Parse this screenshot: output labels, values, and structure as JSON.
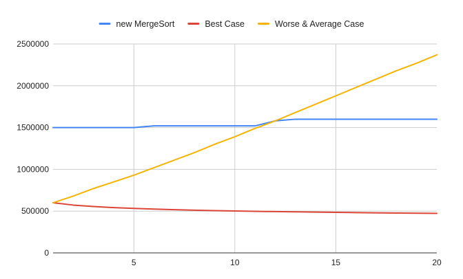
{
  "chart_data": {
    "type": "line",
    "title": "",
    "xlabel": "",
    "ylabel": "",
    "xlim": [
      1,
      20
    ],
    "ylim": [
      0,
      2500000
    ],
    "x_ticks": [
      5,
      10,
      15,
      20
    ],
    "y_ticks": [
      0,
      500000,
      1000000,
      1500000,
      2000000,
      2500000
    ],
    "x_tick_labels": [
      "5",
      "10",
      "15",
      "20"
    ],
    "y_tick_labels": [
      "0",
      "500000",
      "1000000",
      "1500000",
      "2000000",
      "2500000"
    ],
    "grid": true,
    "legend_position": "top",
    "x": [
      1,
      2,
      3,
      4,
      5,
      6,
      7,
      8,
      9,
      10,
      11,
      12,
      13,
      14,
      15,
      16,
      17,
      18,
      19,
      20
    ],
    "series": [
      {
        "name": "new MergeSort",
        "color": "#4285f4",
        "values": [
          1500000,
          1500000,
          1500000,
          1500000,
          1500000,
          1520000,
          1520000,
          1520000,
          1520000,
          1520000,
          1520000,
          1580000,
          1600000,
          1600000,
          1600000,
          1600000,
          1600000,
          1600000,
          1600000,
          1600000
        ]
      },
      {
        "name": "Best Case",
        "color": "#db4437",
        "values": [
          600000,
          572000,
          555000,
          542000,
          532000,
          524000,
          517000,
          511000,
          506000,
          502000,
          497000,
          494000,
          491000,
          488000,
          485000,
          482000,
          479000,
          477000,
          475000,
          473000
        ]
      },
      {
        "name": "Worse & Average Case",
        "color": "#f4b400",
        "values": [
          600000,
          680000,
          770000,
          850000,
          930000,
          1020000,
          1110000,
          1200000,
          1300000,
          1390000,
          1490000,
          1580000,
          1680000,
          1780000,
          1880000,
          1980000,
          2080000,
          2180000,
          2270000,
          2370000
        ]
      }
    ]
  }
}
